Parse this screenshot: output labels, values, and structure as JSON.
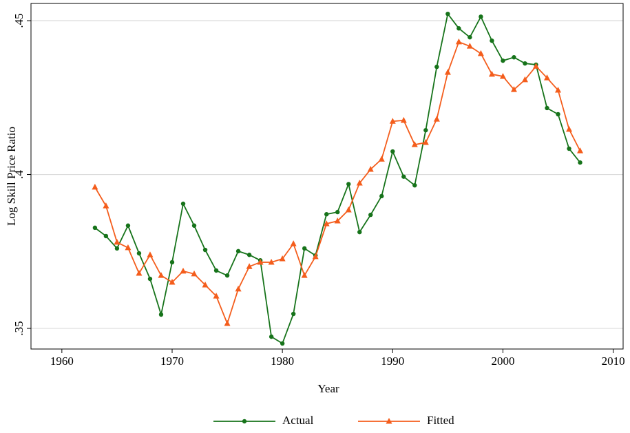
{
  "chart_data": {
    "type": "line",
    "x_label": "Year",
    "y_label": "Log Skill Price Ratio",
    "x": [
      1963,
      1964,
      1965,
      1966,
      1967,
      1968,
      1969,
      1970,
      1971,
      1972,
      1973,
      1974,
      1975,
      1976,
      1977,
      1978,
      1979,
      1980,
      1981,
      1982,
      1983,
      1984,
      1985,
      1986,
      1987,
      1988,
      1989,
      1990,
      1991,
      1992,
      1993,
      1994,
      1995,
      1996,
      1997,
      1998,
      1999,
      2000,
      2001,
      2002,
      2003,
      2004,
      2005,
      2006,
      2007
    ],
    "series": [
      {
        "name": "Actual",
        "color": "#16731a",
        "marker": "circle",
        "values": [
          0.3827,
          0.38,
          0.376,
          0.3834,
          0.3744,
          0.3661,
          0.3545,
          0.3715,
          0.3905,
          0.3834,
          0.3755,
          0.3688,
          0.3672,
          0.3751,
          0.3739,
          0.3721,
          0.3473,
          0.3451,
          0.3547,
          0.376,
          0.3737,
          0.3871,
          0.3878,
          0.3969,
          0.3813,
          0.3869,
          0.393,
          0.4075,
          0.3993,
          0.3965,
          0.4144,
          0.435,
          0.4522,
          0.4475,
          0.4446,
          0.4513,
          0.4435,
          0.437,
          0.4381,
          0.4361,
          0.4357,
          0.4216,
          0.4196,
          0.4084,
          0.4039
        ]
      },
      {
        "name": "Fitted",
        "color": "#f45d1c",
        "marker": "triangle",
        "values": [
          0.3959,
          0.3898,
          0.378,
          0.3762,
          0.3679,
          0.3739,
          0.3672,
          0.365,
          0.3686,
          0.3677,
          0.3641,
          0.3605,
          0.3516,
          0.3628,
          0.3701,
          0.3715,
          0.3715,
          0.3726,
          0.3775,
          0.3672,
          0.3733,
          0.384,
          0.3849,
          0.3885,
          0.3972,
          0.4017,
          0.405,
          0.4173,
          0.4176,
          0.4097,
          0.4104,
          0.418,
          0.4332,
          0.4431,
          0.4417,
          0.4393,
          0.4326,
          0.4319,
          0.4276,
          0.4308,
          0.4352,
          0.4314,
          0.4274,
          0.4147,
          0.4077
        ]
      }
    ],
    "xlim": [
      1957.2,
      2010.9
    ],
    "ylim": [
      0.3433,
      0.4556
    ],
    "xticks": [
      1960,
      1970,
      1980,
      1990,
      2000,
      2010
    ],
    "yticks": [
      {
        "value": 0.35,
        "label": ".35"
      },
      {
        "value": 0.4,
        "label": ".4"
      },
      {
        "value": 0.45,
        "label": ".45"
      }
    ],
    "grid": true,
    "legend": "bottom"
  }
}
